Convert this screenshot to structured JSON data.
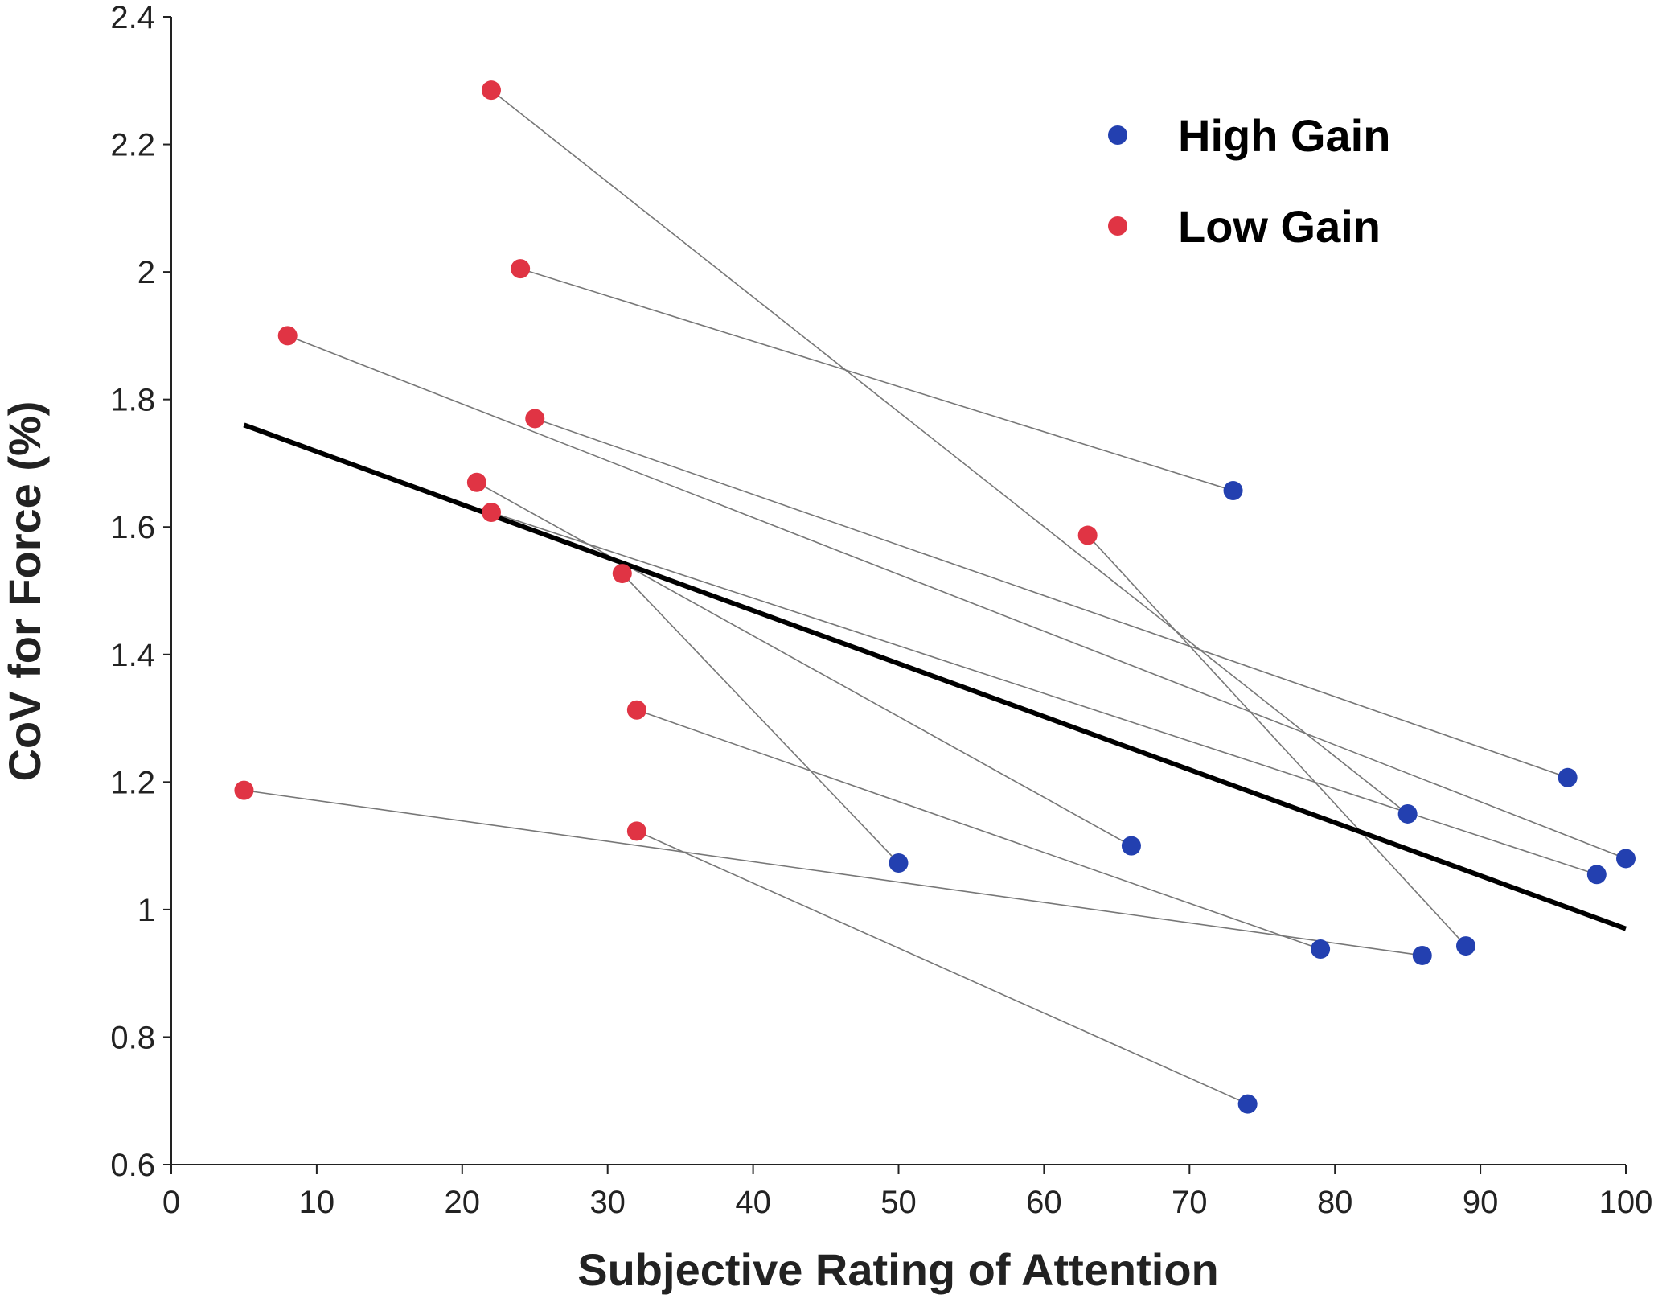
{
  "chart_data": {
    "type": "scatter",
    "xlabel": "Subjective Rating of Attention",
    "ylabel": "CoV for Force (%)",
    "xlim": [
      0,
      100
    ],
    "ylim": [
      0.6,
      2.4
    ],
    "xticks": [
      0,
      10,
      20,
      30,
      40,
      50,
      60,
      70,
      80,
      90,
      100
    ],
    "yticks": [
      0.6,
      0.8,
      1,
      1.2,
      1.4,
      1.6,
      1.8,
      2,
      2.2,
      2.4
    ],
    "legend": "upper right",
    "series": [
      {
        "name": "High Gain",
        "color": "#2340b0",
        "x": [
          85,
          73,
          100,
          96,
          66,
          98,
          50,
          89,
          79,
          86,
          74
        ],
        "values": [
          1.15,
          1.657,
          1.08,
          1.207,
          1.1,
          1.055,
          1.073,
          0.943,
          0.938,
          0.928,
          0.695
        ]
      },
      {
        "name": "Low Gain",
        "color": "#e03444",
        "x": [
          22,
          24,
          8,
          25,
          21,
          22,
          31,
          63,
          32,
          5,
          32
        ],
        "values": [
          2.285,
          2.005,
          1.9,
          1.77,
          1.67,
          1.623,
          1.527,
          1.587,
          1.313,
          1.187,
          1.123
        ]
      }
    ],
    "pair_color": "#777777",
    "fit": {
      "color": "#000000",
      "x": [
        5,
        100
      ],
      "values": [
        1.76,
        0.97
      ]
    }
  }
}
